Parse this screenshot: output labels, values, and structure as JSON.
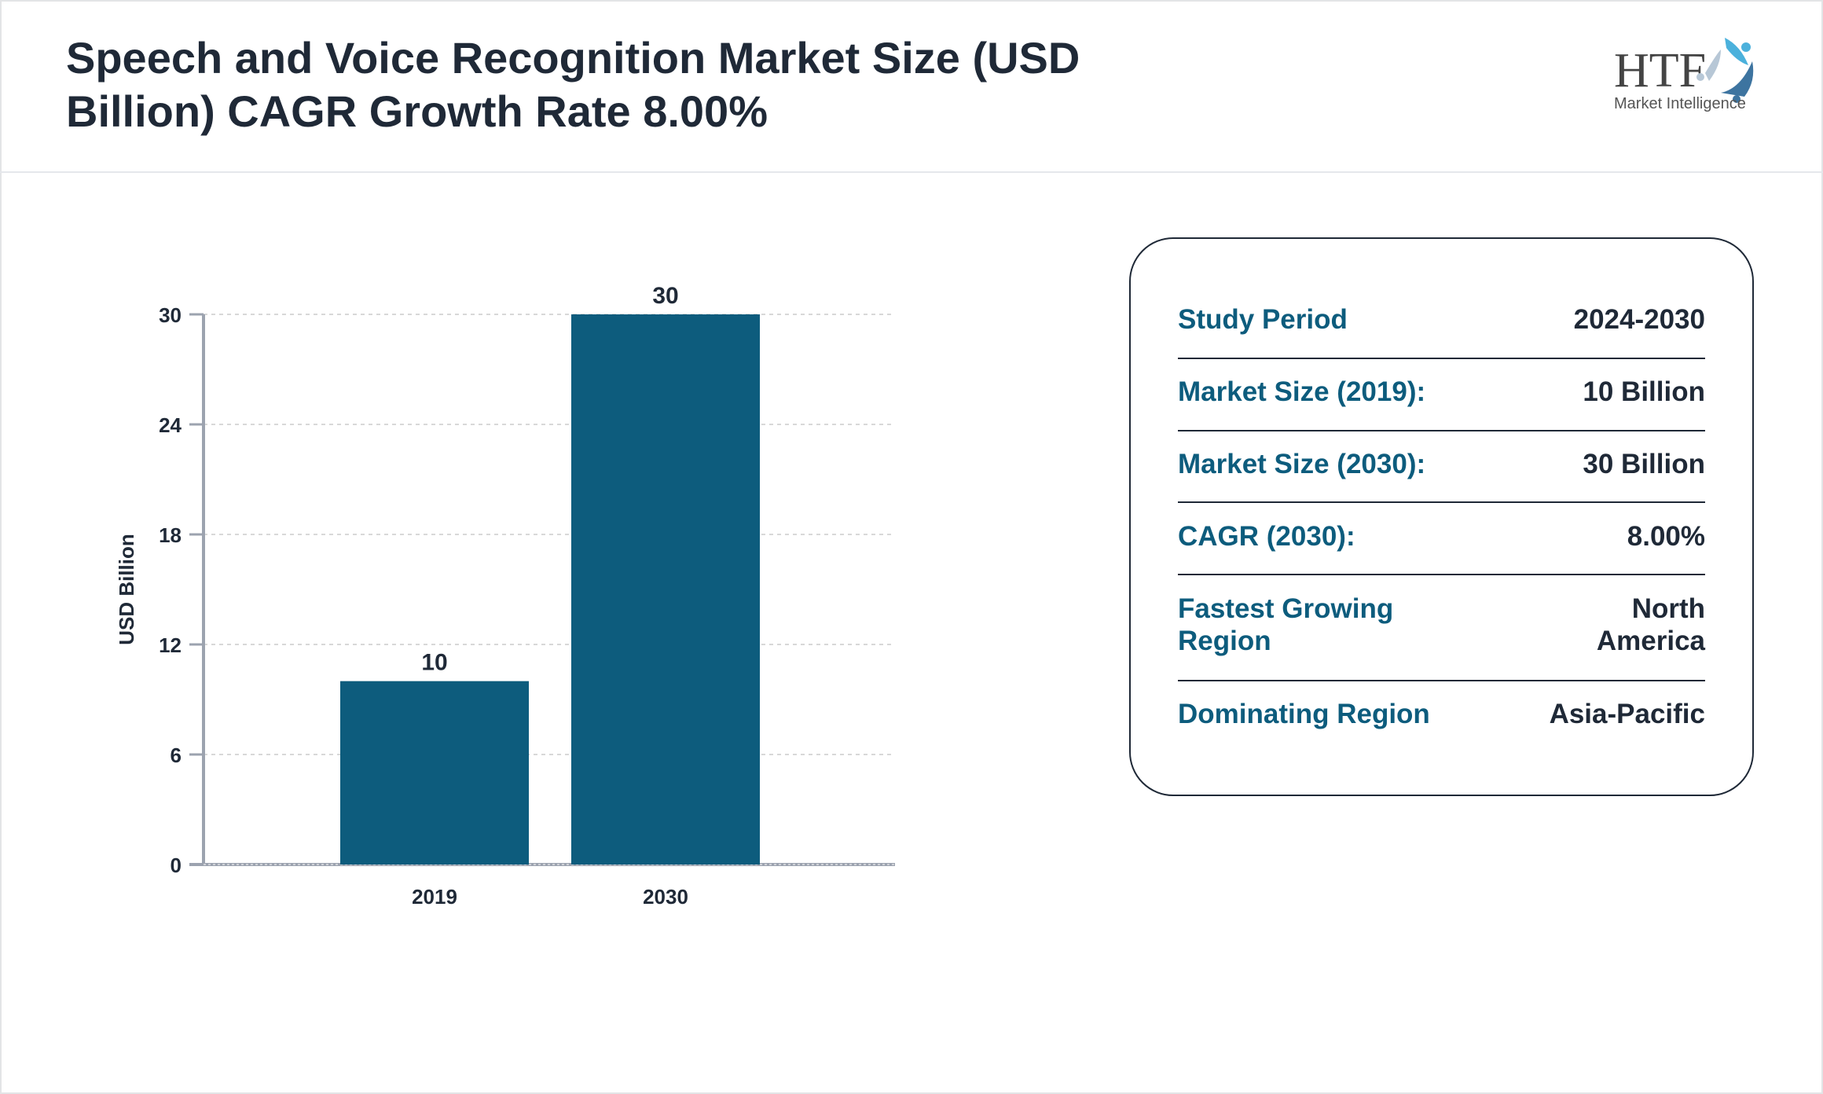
{
  "title_line1": "Speech and Voice Recognition Market Size (USD",
  "title_line2": "Billion) CAGR Growth Rate 8.00%",
  "logo": {
    "text": "HTF",
    "subtext": "Market Intelligence"
  },
  "colors": {
    "bar": "#0d5c7d",
    "label": "#0d5c7d",
    "text": "#1f2937",
    "axis": "#9ca3af"
  },
  "chart_data": {
    "type": "bar",
    "categories": [
      "2019",
      "2030"
    ],
    "values": [
      10,
      30
    ],
    "data_labels": [
      "10",
      "30"
    ],
    "title": "",
    "xlabel": "",
    "ylabel": "USD Billion",
    "ylim": [
      0,
      30
    ],
    "yticks": [
      0,
      6,
      12,
      18,
      24,
      30
    ],
    "grid": true
  },
  "info": [
    {
      "label": "Study Period",
      "value": "2024-2030"
    },
    {
      "label": "Market Size (2019):",
      "value": "10 Billion"
    },
    {
      "label": "Market Size (2030):",
      "value": "30 Billion"
    },
    {
      "label": "CAGR (2030):",
      "value": "8.00%"
    },
    {
      "label": "Fastest Growing Region",
      "value": "North America"
    },
    {
      "label": "Dominating Region",
      "value": "Asia-Pacific"
    }
  ]
}
